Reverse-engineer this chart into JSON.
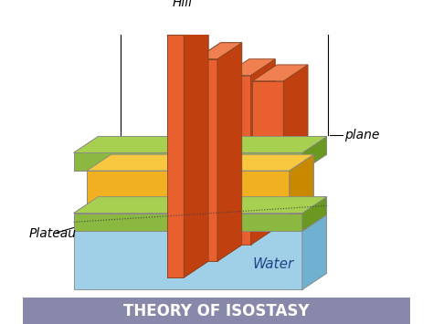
{
  "title": "THEORY OF ISOSTASY",
  "title_bg": "#8888aa",
  "title_color": "white",
  "title_fontsize": 12,
  "bg_color": "white",
  "label_hill": "Hill",
  "label_plane": "plane",
  "label_plateau": "Plateau",
  "label_water": "Water",
  "label_fontsize": 10,
  "colors": {
    "green_face": "#8ab840",
    "green_side": "#6a9820",
    "green_top": "#a8d050",
    "yellow_face": "#f0b020",
    "yellow_side": "#c88800",
    "yellow_top": "#f8c840",
    "orange_face": "#e86030",
    "orange_side": "#c04010",
    "orange_top": "#f08050",
    "water_face": "#a0d0e8",
    "water_side": "#70b0d0",
    "water_top": "#c8e8f8",
    "edge": "#888888"
  },
  "figw": 4.74,
  "figh": 3.55,
  "dpi": 100
}
